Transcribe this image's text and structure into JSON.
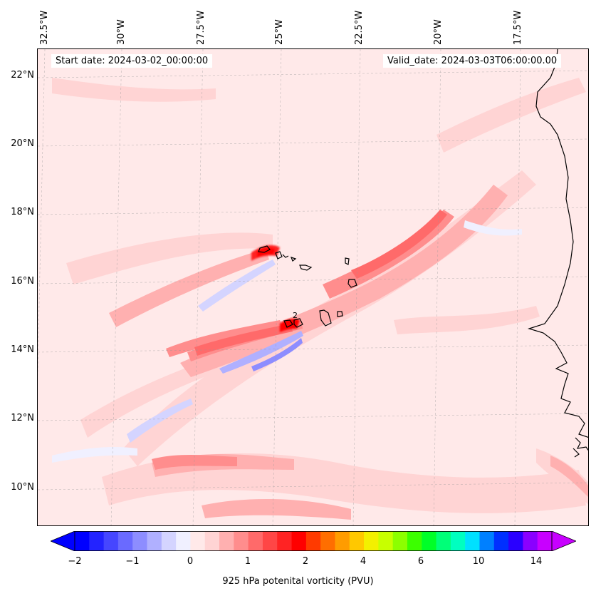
{
  "map": {
    "start_date": "Start date: 2024-03-02_00:00:00",
    "valid_date": "Valid_date: 2024-03-03T06:00:00.00",
    "longitude_labels": [
      "32.5°W",
      "30°W",
      "27.5°W",
      "25°W",
      "22.5°W",
      "20°W",
      "17.5°W"
    ],
    "latitude_labels": [
      "22°N",
      "20°N",
      "18°N",
      "16°N",
      "14°N",
      "12°N",
      "10°N"
    ],
    "contour_inline_label": "2",
    "extent": {
      "west_deg": -33.0,
      "east_deg": -15.5,
      "south_deg": 8.9,
      "north_deg": 22.8
    }
  },
  "colorbar": {
    "label": "925 hPa potenital vorticity (PVU)",
    "tick_labels": [
      "−2",
      "−1",
      "0",
      "1",
      "2",
      "4",
      "6",
      "10",
      "14"
    ],
    "levels": [
      -2,
      -1,
      0,
      1,
      2,
      4,
      6,
      10,
      14
    ],
    "extend": "both",
    "colors": [
      "#0000ff",
      "#2323ff",
      "#4646ff",
      "#6a6aff",
      "#8d8dff",
      "#b0b0ff",
      "#d4d4ff",
      "#f0f0ff",
      "#ffe9e9",
      "#ffd4d4",
      "#ffb0b0",
      "#ff8d8d",
      "#ff6a6a",
      "#ff4646",
      "#ff2323",
      "#ff0000",
      "#ff3a00",
      "#ff6e00",
      "#ff9c00",
      "#ffc800",
      "#f3f000",
      "#c8ff00",
      "#8cff00",
      "#3cff00",
      "#00ff28",
      "#00ff78",
      "#00ffc0",
      "#00e0ff",
      "#0080ff",
      "#0030ff",
      "#2a00ff",
      "#8a00ff",
      "#c800ff"
    ],
    "under_color": "#0000ff",
    "over_color": "#c800ff"
  }
}
